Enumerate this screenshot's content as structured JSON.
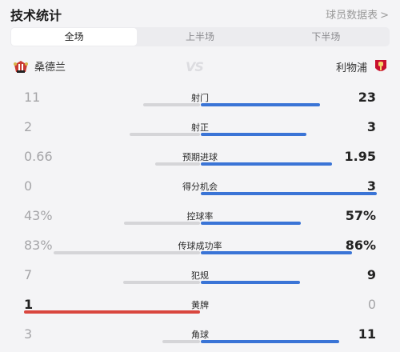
{
  "header": {
    "title": "技术统计",
    "player_stats_link": "球员数据表",
    "chevron": ">"
  },
  "tabs": [
    {
      "label": "全场",
      "active": true
    },
    {
      "label": "上半场",
      "active": false
    },
    {
      "label": "下半场",
      "active": false
    }
  ],
  "teams": {
    "home": {
      "name": "桑德兰",
      "logo": "sunderland-crest-icon"
    },
    "away": {
      "name": "利物浦",
      "logo": "liverpool-crest-icon"
    },
    "vs": "VS"
  },
  "colors": {
    "home_accent": "#d9463e",
    "away_accent": "#3a74d6",
    "neutral_bar": "#d5d5d8"
  },
  "stats": [
    {
      "label": "射门",
      "home": "11",
      "away": "23",
      "home_share": 0.324,
      "away_share": 0.676,
      "leader": "away"
    },
    {
      "label": "射正",
      "home": "2",
      "away": "3",
      "home_share": 0.4,
      "away_share": 0.6,
      "leader": "away"
    },
    {
      "label": "预期进球",
      "home": "0.66",
      "away": "1.95",
      "home_share": 0.253,
      "away_share": 0.747,
      "leader": "away"
    },
    {
      "label": "得分机会",
      "home": "0",
      "away": "3",
      "home_share": 0.0,
      "away_share": 1.0,
      "leader": "away"
    },
    {
      "label": "控球率",
      "home": "43%",
      "away": "57%",
      "home_share": 0.43,
      "away_share": 0.57,
      "leader": "away"
    },
    {
      "label": "传球成功率",
      "home": "83%",
      "away": "86%",
      "home_share": 0.83,
      "away_share": 0.86,
      "leader": "away"
    },
    {
      "label": "犯规",
      "home": "7",
      "away": "9",
      "home_share": 0.4375,
      "away_share": 0.5625,
      "leader": "away"
    },
    {
      "label": "黄牌",
      "home": "1",
      "away": "0",
      "home_share": 1.0,
      "away_share": 0.0,
      "leader": "home"
    },
    {
      "label": "角球",
      "home": "3",
      "away": "11",
      "home_share": 0.214,
      "away_share": 0.786,
      "leader": "away"
    }
  ]
}
